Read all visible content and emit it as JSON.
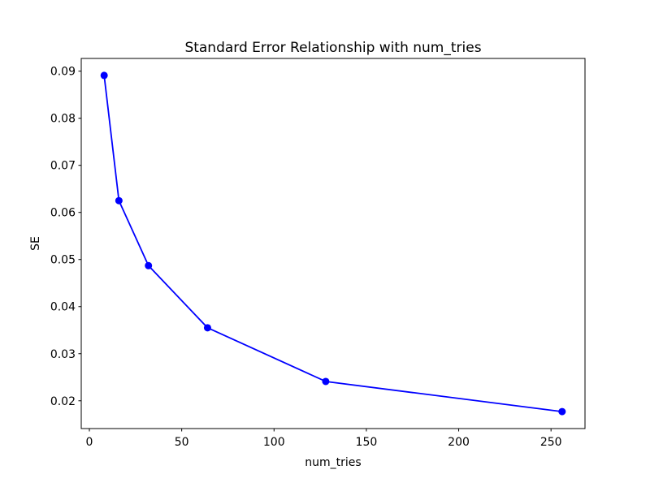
{
  "chart_data": {
    "type": "line",
    "title": "Standard Error Relationship with num_tries",
    "xlabel": "num_tries",
    "ylabel": "SE",
    "x": [
      8,
      16,
      32,
      64,
      128,
      256
    ],
    "series": [
      {
        "name": "SE",
        "values": [
          0.0891,
          0.0625,
          0.0487,
          0.0355,
          0.0241,
          0.0177
        ]
      }
    ],
    "xlim": [
      -4.4,
      268.4
    ],
    "ylim": [
      0.0141,
      0.0927
    ],
    "xticks": [
      0,
      50,
      100,
      150,
      200,
      250
    ],
    "xtick_labels": [
      "0",
      "50",
      "100",
      "150",
      "200",
      "250"
    ],
    "yticks": [
      0.02,
      0.03,
      0.04,
      0.05,
      0.06,
      0.07,
      0.08,
      0.09
    ],
    "ytick_labels": [
      "0.02",
      "0.03",
      "0.04",
      "0.05",
      "0.06",
      "0.07",
      "0.08",
      "0.09"
    ],
    "line_color": "#0000ff",
    "marker": "circle",
    "marker_color": "#0000ff",
    "grid": false,
    "legend": "none",
    "background": "#ffffff",
    "axes_color": "#000000"
  }
}
